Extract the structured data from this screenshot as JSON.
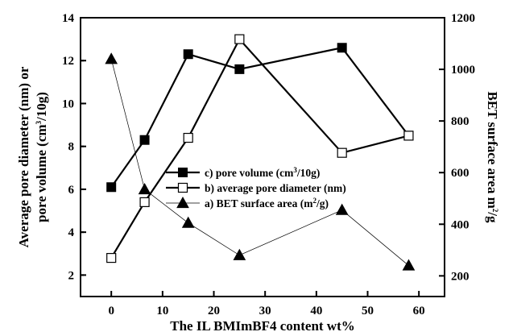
{
  "chart_data": {
    "type": "line",
    "xlabel": "The IL BMImBF4 content  wt%",
    "ylabel_left_line1": "Average pore diameter (nm) or",
    "ylabel_left_line2_pre": "pore volume (cm",
    "ylabel_left_line2_sup": "3",
    "ylabel_left_line2_post": "/10g)",
    "ylabel_right_pre": "BET surface area m",
    "ylabel_right_sup": "2",
    "ylabel_right_post": "/g",
    "xlim": [
      -6,
      65
    ],
    "ylim_left": [
      1,
      14
    ],
    "ylim_right": [
      120,
      1200
    ],
    "x_ticks": [
      0,
      10,
      20,
      30,
      40,
      50,
      60
    ],
    "y_left_ticks": [
      2,
      4,
      6,
      8,
      10,
      12,
      14
    ],
    "y_right_ticks": [
      200,
      400,
      600,
      800,
      1000,
      1200
    ],
    "grid": false,
    "legend_position": "center-left",
    "series": [
      {
        "name": "c) pore volume (cm3/10g)",
        "name_pre": "c) pore volume (cm",
        "name_sup": "3",
        "name_post": "/10g)",
        "axis": "left",
        "marker": "filled-square",
        "line": "thick",
        "color": "#000000",
        "x": [
          0,
          6.5,
          15,
          25,
          45,
          58
        ],
        "y": [
          6.1,
          8.3,
          12.3,
          11.6,
          12.6,
          8.5
        ]
      },
      {
        "name": "b) average pore diameter (nm)",
        "name_pre": "b) average pore diameter (nm)",
        "name_sup": "",
        "name_post": "",
        "axis": "left",
        "marker": "open-square",
        "line": "thick",
        "color": "#000000",
        "x": [
          0,
          6.5,
          15,
          25,
          45,
          58
        ],
        "y": [
          2.8,
          5.4,
          8.4,
          13.0,
          7.7,
          8.5
        ]
      },
      {
        "name": "a) BET surface area (m2/g)",
        "name_pre": "a) BET surface area (m",
        "name_sup": "2",
        "name_post": "/g)",
        "axis": "right",
        "marker": "filled-triangle",
        "line": "thin",
        "color": "#000000",
        "x": [
          0,
          6.5,
          15,
          25,
          45,
          58
        ],
        "y": [
          1040,
          535,
          405,
          280,
          455,
          240
        ]
      }
    ]
  }
}
